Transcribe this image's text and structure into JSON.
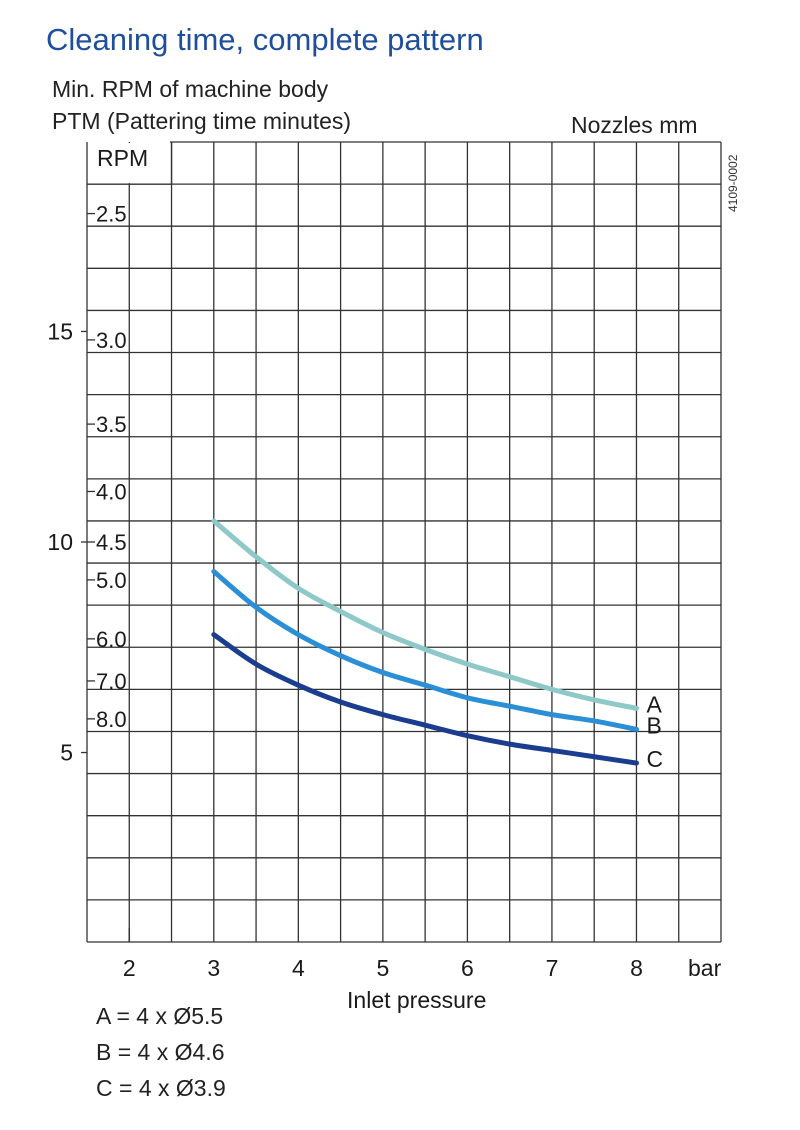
{
  "title": "Cleaning time, complete pattern",
  "subtitle_1": "Min. RPM of machine body",
  "subtitle_2": "PTM (Pattering time minutes)",
  "right_header": "Nozzles mm",
  "figure_code": "4109-0002",
  "chart_data": {
    "type": "line",
    "xlabel": "Inlet pressure",
    "x_unit": "bar",
    "x_ticks": [
      2,
      3,
      4,
      5,
      6,
      7,
      8
    ],
    "xlim": [
      1.5,
      8.999
    ],
    "ylabel": "RPM",
    "ylim": [
      0.5,
      19.5
    ],
    "y_ticks": [
      5,
      10,
      15
    ],
    "ptm_ticks": [
      {
        "label": "2.5",
        "rpm": 17.8
      },
      {
        "label": "3.0",
        "rpm": 14.8
      },
      {
        "label": "3.5",
        "rpm": 12.8
      },
      {
        "label": "4.0",
        "rpm": 11.2
      },
      {
        "label": "4.5",
        "rpm": 10.0
      },
      {
        "label": "5.0",
        "rpm": 9.1
      },
      {
        "label": "6.0",
        "rpm": 7.7
      },
      {
        "label": "7.0",
        "rpm": 6.7
      },
      {
        "label": "8.0",
        "rpm": 5.8
      }
    ],
    "series": [
      {
        "name": "A",
        "color": "#8ec8c8",
        "x": [
          3,
          3.5,
          4,
          4.5,
          5,
          5.5,
          6,
          6.5,
          7,
          7.5,
          8
        ],
        "y": [
          10.5,
          9.65,
          8.9,
          8.35,
          7.85,
          7.45,
          7.1,
          6.8,
          6.5,
          6.25,
          6.05
        ]
      },
      {
        "name": "B",
        "color": "#2a8fd6",
        "x": [
          3,
          3.5,
          4,
          4.5,
          5,
          5.5,
          6,
          6.5,
          7,
          7.5,
          8
        ],
        "y": [
          9.3,
          8.45,
          7.8,
          7.3,
          6.9,
          6.6,
          6.3,
          6.1,
          5.9,
          5.75,
          5.55
        ]
      },
      {
        "name": "C",
        "color": "#1b3d8f",
        "x": [
          3,
          3.5,
          4,
          4.5,
          5,
          5.5,
          6,
          6.5,
          7,
          7.5,
          8
        ],
        "y": [
          7.8,
          7.1,
          6.6,
          6.2,
          5.9,
          5.65,
          5.4,
          5.2,
          5.05,
          4.9,
          4.75
        ]
      }
    ],
    "legend": [
      "A = 4 x Ø5.5",
      "B = 4 x Ø4.6",
      "C = 4 x Ø3.9"
    ]
  }
}
